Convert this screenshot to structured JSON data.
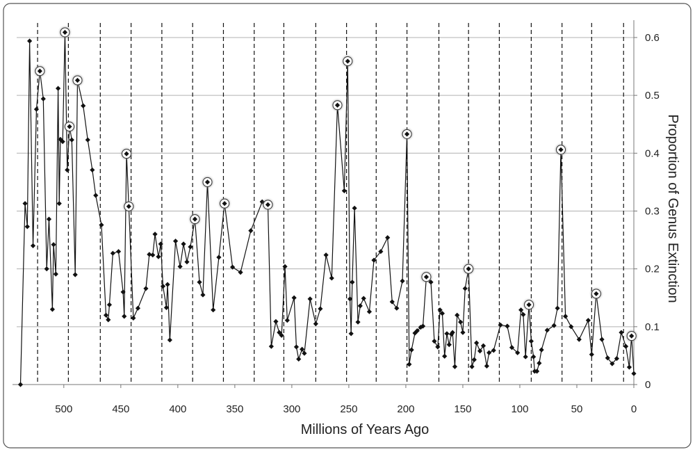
{
  "chart_data": {
    "type": "line",
    "x_label": "Millions of Years Ago",
    "y_label": "Proportion of Genus Extinction",
    "xlim": [
      545,
      0
    ],
    "ylim": [
      0,
      0.63
    ],
    "xticks": [
      500,
      450,
      400,
      350,
      300,
      250,
      200,
      150,
      100,
      50,
      0
    ],
    "yticks": [
      0,
      0.1,
      0.2,
      0.3,
      0.4,
      0.5,
      0.6
    ],
    "y_axis_side": "right",
    "grid": true,
    "color": "#111111",
    "periodic_lines": [
      523,
      496,
      468,
      441,
      414,
      387,
      360,
      333,
      307,
      279,
      252,
      226,
      199,
      171,
      145,
      118,
      90,
      63,
      37,
      9
    ],
    "x": [
      538,
      534,
      532,
      530,
      527,
      524,
      521,
      518,
      515,
      513,
      510,
      509,
      507,
      505,
      504,
      503,
      501,
      499,
      497,
      495,
      493,
      490,
      488,
      483,
      479,
      475,
      472,
      467,
      463,
      461,
      460,
      457,
      452,
      448,
      447,
      445,
      443,
      439,
      435,
      428,
      425,
      422,
      420,
      417,
      415,
      413,
      410,
      409,
      407,
      402,
      398,
      395,
      392,
      389,
      385,
      381,
      378,
      374,
      369,
      364,
      359,
      352,
      345,
      336,
      326,
      321,
      318,
      314,
      311,
      309,
      306,
      304,
      298,
      296,
      294,
      291,
      289,
      284,
      279,
      275,
      270,
      265,
      260,
      254,
      251,
      249,
      248,
      247,
      245,
      242,
      240,
      237,
      232,
      228,
      222,
      216,
      212,
      208,
      203,
      199,
      197,
      195,
      192,
      190,
      187,
      185,
      182,
      178,
      175,
      172,
      170,
      168,
      166,
      164,
      162,
      160,
      159,
      157,
      155,
      152,
      150,
      148,
      145,
      142,
      140,
      138,
      135,
      132,
      129,
      127,
      123,
      117,
      111,
      107,
      102,
      99,
      97,
      95,
      92,
      90,
      88,
      87,
      85,
      83,
      81,
      76,
      70,
      67,
      64,
      60,
      55,
      48,
      40,
      37,
      33,
      28,
      23,
      19,
      15,
      11,
      7,
      4,
      2,
      0
    ],
    "values": [
      0.0,
      0.313,
      0.273,
      0.594,
      0.24,
      0.476,
      0.542,
      0.494,
      0.2,
      0.286,
      0.13,
      0.242,
      0.191,
      0.512,
      0.313,
      0.424,
      0.42,
      0.609,
      0.371,
      0.446,
      0.423,
      0.19,
      0.526,
      0.482,
      0.423,
      0.371,
      0.327,
      0.276,
      0.12,
      0.112,
      0.138,
      0.227,
      0.23,
      0.16,
      0.118,
      0.399,
      0.308,
      0.115,
      0.132,
      0.166,
      0.225,
      0.224,
      0.26,
      0.221,
      0.243,
      0.17,
      0.133,
      0.173,
      0.077,
      0.248,
      0.204,
      0.243,
      0.212,
      0.238,
      0.286,
      0.177,
      0.155,
      0.35,
      0.129,
      0.22,
      0.313,
      0.203,
      0.194,
      0.266,
      0.316,
      0.311,
      0.066,
      0.109,
      0.09,
      0.085,
      0.204,
      0.111,
      0.15,
      0.065,
      0.044,
      0.061,
      0.054,
      0.148,
      0.105,
      0.131,
      0.224,
      0.184,
      0.483,
      0.335,
      0.559,
      0.148,
      0.088,
      0.177,
      0.305,
      0.108,
      0.136,
      0.149,
      0.126,
      0.215,
      0.23,
      0.254,
      0.143,
      0.132,
      0.179,
      0.433,
      0.035,
      0.06,
      0.089,
      0.093,
      0.099,
      0.101,
      0.186,
      0.177,
      0.075,
      0.065,
      0.129,
      0.123,
      0.049,
      0.088,
      0.069,
      0.087,
      0.09,
      0.031,
      0.12,
      0.108,
      0.09,
      0.166,
      0.2,
      0.031,
      0.043,
      0.072,
      0.058,
      0.067,
      0.032,
      0.055,
      0.059,
      0.103,
      0.101,
      0.064,
      0.055,
      0.129,
      0.121,
      0.048,
      0.138,
      0.075,
      0.048,
      0.023,
      0.023,
      0.037,
      0.06,
      0.094,
      0.102,
      0.132,
      0.406,
      0.118,
      0.1,
      0.078,
      0.111,
      0.052,
      0.157,
      0.078,
      0.046,
      0.036,
      0.045,
      0.09,
      0.066,
      0.03,
      0.084,
      0.019
    ],
    "circled": [
      false,
      false,
      false,
      false,
      false,
      false,
      true,
      false,
      false,
      false,
      false,
      false,
      false,
      false,
      false,
      false,
      false,
      true,
      false,
      true,
      false,
      false,
      true,
      false,
      false,
      false,
      false,
      false,
      false,
      false,
      false,
      false,
      false,
      false,
      false,
      true,
      true,
      false,
      false,
      false,
      false,
      false,
      false,
      false,
      false,
      false,
      false,
      false,
      false,
      false,
      false,
      false,
      false,
      false,
      true,
      false,
      false,
      true,
      false,
      false,
      true,
      false,
      false,
      false,
      false,
      true,
      false,
      false,
      false,
      false,
      false,
      false,
      false,
      false,
      false,
      false,
      false,
      false,
      false,
      false,
      false,
      false,
      true,
      false,
      true,
      false,
      false,
      false,
      false,
      false,
      false,
      false,
      false,
      false,
      false,
      false,
      false,
      false,
      false,
      true,
      false,
      false,
      false,
      false,
      false,
      false,
      true,
      false,
      false,
      false,
      false,
      false,
      false,
      false,
      false,
      false,
      false,
      false,
      false,
      false,
      false,
      false,
      true,
      false,
      false,
      false,
      false,
      false,
      false,
      false,
      false,
      false,
      false,
      false,
      false,
      false,
      false,
      false,
      true,
      false,
      false,
      false,
      false,
      false,
      false,
      false,
      false,
      false,
      true,
      false,
      false,
      false,
      false,
      false,
      true,
      false,
      false,
      false,
      false,
      false,
      false,
      false,
      true,
      false
    ]
  }
}
